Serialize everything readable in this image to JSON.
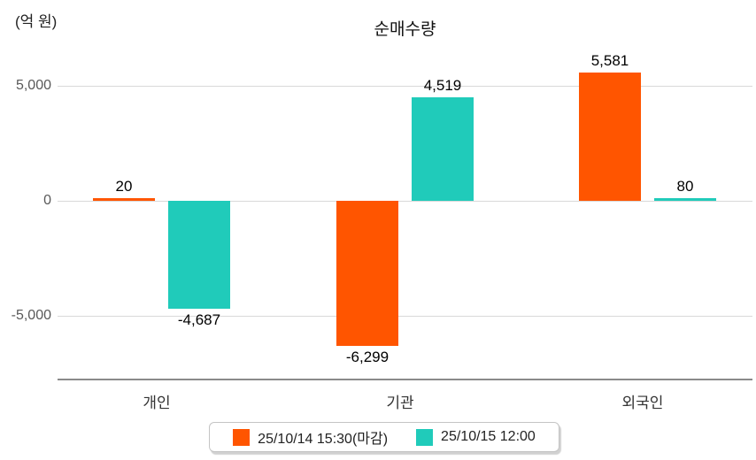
{
  "chart": {
    "unit_label": "(억 원)"
  },
  "chart_data": {
    "type": "bar",
    "title": "순매수량",
    "ylabel": "(억 원)",
    "categories": [
      "개인",
      "기관",
      "외국인"
    ],
    "series": [
      {
        "name": "25/10/14 15:30(마감)",
        "color": "#ff5500",
        "values": [
          20,
          -6299,
          5581
        ],
        "labels": [
          "20",
          "-6,299",
          "5,581"
        ]
      },
      {
        "name": "25/10/15 12:00",
        "color": "#20cbba",
        "values": [
          -4687,
          4519,
          80
        ],
        "labels": [
          "-4,687",
          "4,519",
          "80"
        ]
      }
    ],
    "yticks": [
      {
        "value": 5000,
        "label": "5,000"
      },
      {
        "value": 0,
        "label": "0"
      },
      {
        "value": -5000,
        "label": "-5,000"
      }
    ],
    "ylim": [
      -7600,
      6800
    ],
    "grid": true,
    "legend_position": "bottom"
  }
}
